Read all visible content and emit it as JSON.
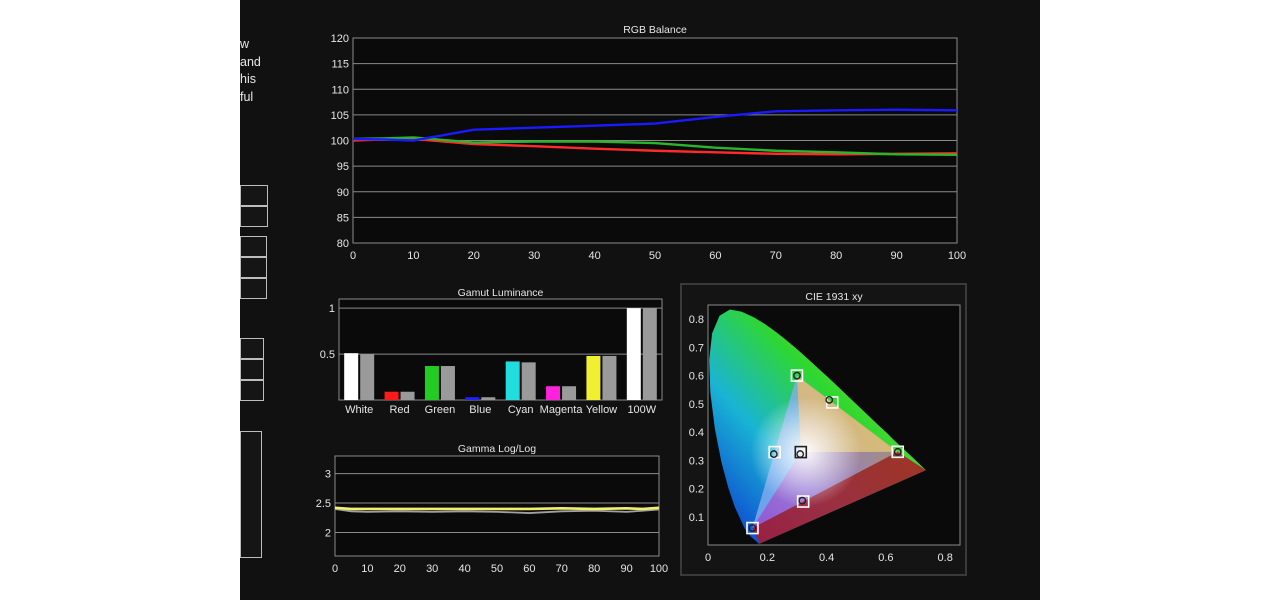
{
  "side_text": [
    "w",
    "and",
    "his",
    "ful"
  ],
  "colors": {
    "background": "#111111",
    "panel": "#0a0a0a",
    "grid": "#8a8a8a",
    "text": "#e6e6e6",
    "red": "#ff2a2a",
    "green": "#2ab52a",
    "blue": "#1a1aff",
    "gamma_measured": "#f2f06a",
    "gamma_target": "#a0a0a0"
  },
  "chart_data": [
    {
      "type": "line",
      "title": "RGB Balance",
      "xlim": [
        0,
        100
      ],
      "ylim": [
        80,
        120
      ],
      "xticks": [
        0,
        10,
        20,
        30,
        40,
        50,
        60,
        70,
        80,
        90,
        100
      ],
      "yticks": [
        80,
        85,
        90,
        95,
        100,
        105,
        110,
        115,
        120
      ],
      "grid": true,
      "x": [
        0,
        5,
        10,
        20,
        30,
        40,
        50,
        60,
        70,
        80,
        90,
        100
      ],
      "series": [
        {
          "color": "red",
          "values": [
            100.0,
            100.2,
            100.3,
            99.3,
            98.9,
            98.4,
            98.0,
            97.7,
            97.4,
            97.3,
            97.4,
            97.5
          ]
        },
        {
          "color": "green",
          "values": [
            100.3,
            100.4,
            100.6,
            99.6,
            99.8,
            99.8,
            99.5,
            98.6,
            98.0,
            97.7,
            97.3,
            97.2
          ]
        },
        {
          "color": "blue",
          "values": [
            100.3,
            100.2,
            100.0,
            102.1,
            102.5,
            102.9,
            103.3,
            104.6,
            105.7,
            105.9,
            106.0,
            105.9
          ]
        }
      ]
    },
    {
      "type": "bar",
      "title": "Gamut Luminance",
      "categories": [
        "White",
        "Red",
        "Green",
        "Blue",
        "Cyan",
        "Magenta",
        "Yellow",
        "100W"
      ],
      "bar_colors": [
        "#ffffff",
        "#ff1a1a",
        "#22cc22",
        "#2222ff",
        "#22dddd",
        "#ff22dd",
        "#f0f030",
        "#ffffff"
      ],
      "series": [
        {
          "values": [
            0.51,
            0.09,
            0.37,
            0.03,
            0.42,
            0.15,
            0.48,
            1.0
          ]
        },
        {
          "values": [
            0.5,
            0.09,
            0.37,
            0.03,
            0.41,
            0.15,
            0.48,
            1.0
          ]
        }
      ],
      "ylim": [
        0,
        1.1
      ],
      "yticks": [
        0.5,
        1
      ],
      "ytick_labels": [
        "0.5",
        "1"
      ],
      "grid": true
    },
    {
      "type": "line",
      "title": "Gamma Log/Log",
      "xlim": [
        0,
        100
      ],
      "ylim": [
        1.6,
        3.3
      ],
      "xticks": [
        0,
        10,
        20,
        30,
        40,
        50,
        60,
        70,
        80,
        90,
        100
      ],
      "yticks": [
        2,
        2.5,
        3
      ],
      "grid": true,
      "x": [
        0,
        5,
        10,
        20,
        30,
        40,
        50,
        60,
        70,
        80,
        90,
        95,
        100
      ],
      "series": [
        {
          "color": "gamma_target",
          "values": [
            2.4,
            2.36,
            2.35,
            2.36,
            2.35,
            2.36,
            2.35,
            2.33,
            2.36,
            2.37,
            2.35,
            2.37,
            2.39
          ]
        },
        {
          "color": "gamma_measured",
          "values": [
            2.42,
            2.4,
            2.4,
            2.4,
            2.4,
            2.4,
            2.4,
            2.4,
            2.41,
            2.4,
            2.41,
            2.4,
            2.42
          ]
        }
      ]
    },
    {
      "type": "scatter",
      "title": "CIE 1931 xy",
      "xlim": [
        0,
        0.85
      ],
      "ylim": [
        0,
        0.85
      ],
      "xticks": [
        0,
        0.2,
        0.4,
        0.6,
        0.8
      ],
      "xtick_labels": [
        "0",
        "0.2",
        "0.4",
        "0.6",
        "0.8"
      ],
      "yticks": [
        0.1,
        0.2,
        0.3,
        0.4,
        0.5,
        0.6,
        0.7,
        0.8
      ],
      "ytick_labels": [
        "0.1",
        "0.2",
        "0.3",
        "0.4",
        "0.5",
        "0.6",
        "0.7",
        "0.8"
      ],
      "targets": [
        {
          "name": "Red",
          "x": 0.64,
          "y": 0.33
        },
        {
          "name": "Green",
          "x": 0.3,
          "y": 0.6
        },
        {
          "name": "Blue",
          "x": 0.15,
          "y": 0.06
        },
        {
          "name": "White",
          "x": 0.313,
          "y": 0.329
        },
        {
          "name": "Cyan",
          "x": 0.225,
          "y": 0.329
        },
        {
          "name": "Magenta",
          "x": 0.321,
          "y": 0.154
        },
        {
          "name": "Yellow",
          "x": 0.419,
          "y": 0.505
        }
      ],
      "measured": [
        {
          "name": "Red",
          "x": 0.64,
          "y": 0.33
        },
        {
          "name": "Green",
          "x": 0.3,
          "y": 0.6
        },
        {
          "name": "Blue",
          "x": 0.15,
          "y": 0.06
        },
        {
          "name": "White",
          "x": 0.311,
          "y": 0.322
        },
        {
          "name": "Cyan",
          "x": 0.222,
          "y": 0.322
        },
        {
          "name": "Magenta",
          "x": 0.318,
          "y": 0.157
        },
        {
          "name": "Yellow",
          "x": 0.409,
          "y": 0.514
        }
      ]
    }
  ]
}
